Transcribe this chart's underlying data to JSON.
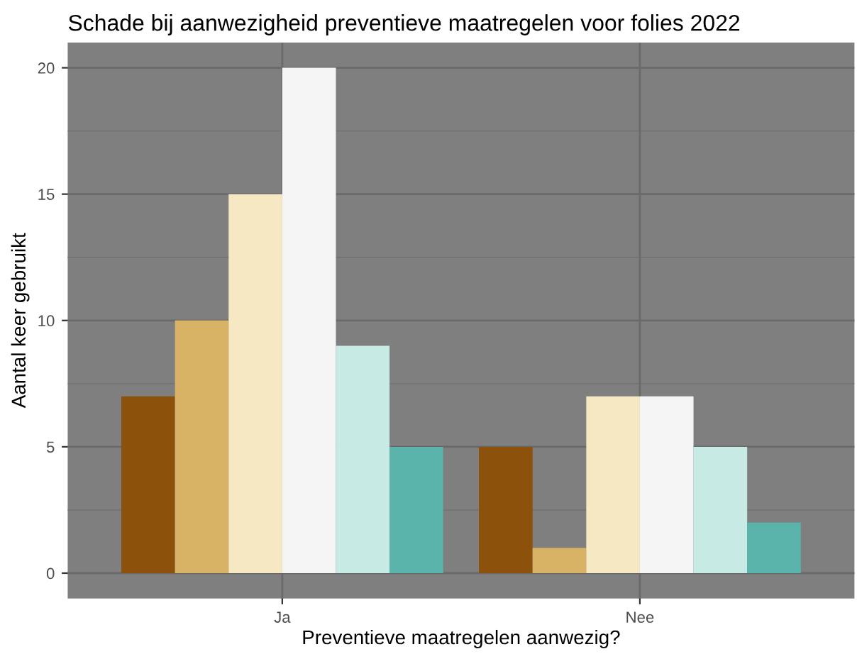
{
  "chart_data": {
    "type": "bar",
    "title": "Schade bij aanwezigheid preventieve maatregelen voor folies 2022",
    "xlabel": "Preventieve maatregelen aanwezig?",
    "ylabel": "Aantal keer gebruikt",
    "categories": [
      "Ja",
      "Nee"
    ],
    "series": [
      {
        "color": "#8c510a",
        "values": [
          7,
          5
        ]
      },
      {
        "color": "#d8b365",
        "values": [
          10,
          1
        ]
      },
      {
        "color": "#f6e8c3",
        "values": [
          15,
          7
        ]
      },
      {
        "color": "#f5f5f5",
        "values": [
          20,
          7
        ]
      },
      {
        "color": "#c7eae5",
        "values": [
          9,
          5
        ]
      },
      {
        "color": "#5ab4ac",
        "values": [
          5,
          2
        ]
      }
    ],
    "ylim": [
      -1,
      21
    ],
    "yticks": [
      0,
      5,
      10,
      15,
      20
    ],
    "grid": true
  }
}
